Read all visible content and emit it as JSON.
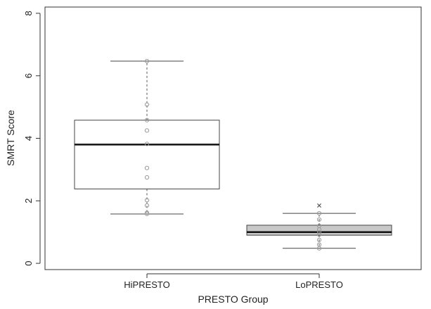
{
  "chart_data": {
    "type": "box",
    "xlabel": "PRESTO Group",
    "ylabel": "SMRT Score",
    "ylim": [
      -0.2,
      8.2
    ],
    "yticks": [
      0,
      2,
      4,
      6,
      8
    ],
    "categories": [
      "HiPRESTO",
      "LoPRESTO"
    ],
    "boxes": [
      {
        "name": "HiPRESTO",
        "fill": "#ffffff",
        "whisker_low": 1.58,
        "q1": 2.38,
        "median": 3.8,
        "q3": 4.58,
        "whisker_high": 6.47,
        "points": [
          1.58,
          1.62,
          1.85,
          2.02,
          2.75,
          3.05,
          3.82,
          4.25,
          4.58,
          5.08,
          6.47
        ],
        "outliers": []
      },
      {
        "name": "LoPRESTO",
        "fill": "#c8c8c8",
        "whisker_low": 0.48,
        "q1": 0.9,
        "median": 1.0,
        "q3": 1.22,
        "whisker_high": 1.6,
        "points": [
          0.48,
          0.6,
          0.75,
          0.92,
          1.0,
          1.08,
          1.2,
          1.4,
          1.6
        ],
        "outliers": [
          1.85
        ]
      }
    ],
    "grid": false,
    "legend": "none"
  }
}
